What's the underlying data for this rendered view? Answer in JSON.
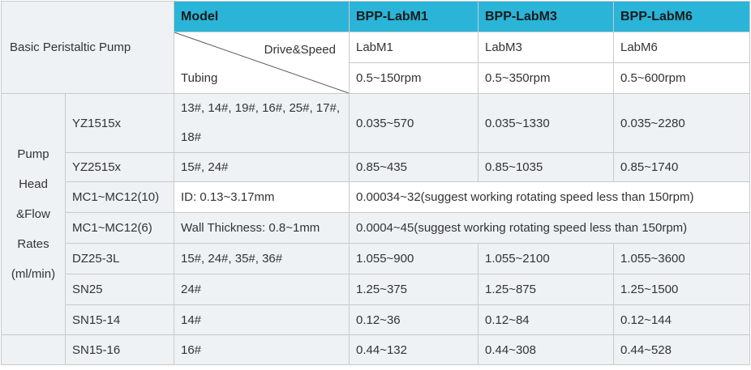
{
  "title": "Basic Peristaltic Pump",
  "header": {
    "model_label": "Model",
    "drive_speed_label": "Drive&Speed",
    "tubing_label": "Tubing",
    "models": [
      "BPP-LabM1",
      "BPP-LabM3",
      "BPP-LabM6"
    ],
    "drives": [
      "LabM1",
      "LabM3",
      "LabM6"
    ],
    "speeds": [
      "0.5~150rpm",
      "0.5~350rpm",
      "0.5~600rpm"
    ]
  },
  "rates_label": "Pump Head &Flow Rates (ml/min)",
  "rows": [
    {
      "head": "YZ1515x",
      "tubing": "13#, 14#, 19#, 16#, 25#, 17#, 18#",
      "m1": "0.035~570",
      "m3": "0.035~1330",
      "m6": "0.035~2280"
    },
    {
      "head": "YZ2515x",
      "tubing": "15#, 24#",
      "m1": "0.85~435",
      "m3": "0.85~1035",
      "m6": "0.85~1740"
    },
    {
      "head": "MC1~MC12(10)",
      "tubing": "ID: 0.13~3.17mm",
      "merged": "0.00034~32(suggest working rotating speed less than 150rpm)"
    },
    {
      "head": "MC1~MC12(6)",
      "tubing": "Wall Thickness: 0.8~1mm",
      "merged": "0.0004~45(suggest working rotating speed less than 150rpm)"
    },
    {
      "head": "DZ25-3L",
      "tubing": "15#, 24#, 35#, 36#",
      "m1": "1.055~900",
      "m3": "1.055~2100",
      "m6": "1.055~3600"
    },
    {
      "head": "SN25",
      "tubing": "24#",
      "m1": "1.25~375",
      "m3": "1.25~875",
      "m6": "1.25~1500"
    },
    {
      "head": "SN15-14",
      "tubing": "14#",
      "m1": "0.12~36",
      "m3": "0.12~84",
      "m6": "0.12~144"
    },
    {
      "head": "SN15-16",
      "tubing": "16#",
      "m1": "0.44~132",
      "m3": "0.44~308",
      "m6": "0.44~528"
    }
  ]
}
